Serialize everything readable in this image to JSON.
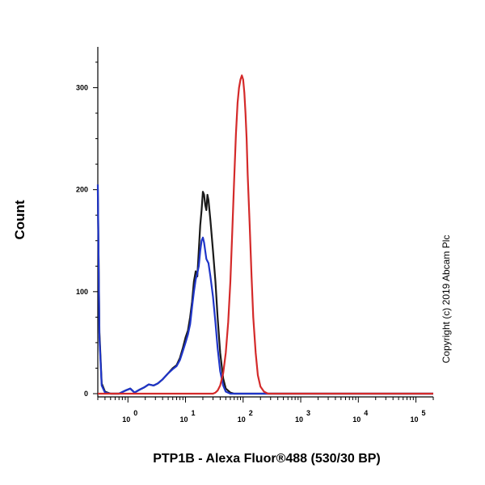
{
  "chart_data": {
    "type": "line",
    "title": "",
    "xlabel": "PTP1B - Alexa Fluor®488 (530/30 BP)",
    "ylabel": "Count",
    "x_scale": "log",
    "xlim": [
      0.3,
      200000
    ],
    "ylim": [
      0,
      340
    ],
    "x_ticks": [
      {
        "value": 1,
        "base": "10",
        "exp": "0"
      },
      {
        "value": 10,
        "base": "10",
        "exp": "1"
      },
      {
        "value": 100,
        "base": "10",
        "exp": "2"
      },
      {
        "value": 1000,
        "base": "10",
        "exp": "3"
      },
      {
        "value": 10000,
        "base": "10",
        "exp": "4"
      },
      {
        "value": 100000,
        "base": "10",
        "exp": "5"
      }
    ],
    "y_ticks": [
      {
        "value": 0,
        "label": "0"
      },
      {
        "value": 100,
        "label": "100"
      },
      {
        "value": 200,
        "label": "200"
      },
      {
        "value": 300,
        "label": "300"
      }
    ],
    "grid": false,
    "legend": "none",
    "annotation": "Copyright (c) 2019 Abcam Plc",
    "series": [
      {
        "color": "#1a1a1a",
        "points": [
          [
            0.3,
            200
          ],
          [
            0.32,
            60
          ],
          [
            0.35,
            10
          ],
          [
            0.4,
            2
          ],
          [
            0.5,
            0
          ],
          [
            0.7,
            0
          ],
          [
            0.9,
            3
          ],
          [
            1.1,
            5
          ],
          [
            1.3,
            1
          ],
          [
            1.6,
            4
          ],
          [
            1.9,
            6
          ],
          [
            2.3,
            9
          ],
          [
            2.8,
            8
          ],
          [
            3.3,
            10
          ],
          [
            4,
            14
          ],
          [
            5,
            20
          ],
          [
            6,
            25
          ],
          [
            7,
            28
          ],
          [
            8,
            35
          ],
          [
            9,
            45
          ],
          [
            10,
            55
          ],
          [
            11,
            62
          ],
          [
            12,
            75
          ],
          [
            13,
            90
          ],
          [
            14,
            110
          ],
          [
            15,
            120
          ],
          [
            16,
            115
          ],
          [
            17,
            140
          ],
          [
            18,
            165
          ],
          [
            19,
            180
          ],
          [
            20,
            198
          ],
          [
            21,
            195
          ],
          [
            22,
            185
          ],
          [
            23,
            180
          ],
          [
            24,
            195
          ],
          [
            25,
            190
          ],
          [
            27,
            170
          ],
          [
            30,
            140
          ],
          [
            33,
            110
          ],
          [
            36,
            75
          ],
          [
            40,
            40
          ],
          [
            45,
            15
          ],
          [
            50,
            5
          ],
          [
            60,
            1
          ],
          [
            70,
            0
          ],
          [
            100,
            0
          ],
          [
            1000,
            0
          ],
          [
            200000,
            0
          ]
        ]
      },
      {
        "color": "#1f35c8",
        "points": [
          [
            0.3,
            205
          ],
          [
            0.32,
            55
          ],
          [
            0.35,
            8
          ],
          [
            0.4,
            1
          ],
          [
            0.5,
            0
          ],
          [
            0.7,
            0
          ],
          [
            0.9,
            3
          ],
          [
            1.1,
            5
          ],
          [
            1.3,
            1
          ],
          [
            1.6,
            4
          ],
          [
            1.9,
            6
          ],
          [
            2.3,
            9
          ],
          [
            2.8,
            8
          ],
          [
            3.3,
            10
          ],
          [
            4,
            14
          ],
          [
            5,
            20
          ],
          [
            6,
            24
          ],
          [
            7,
            27
          ],
          [
            8,
            33
          ],
          [
            9,
            42
          ],
          [
            10,
            50
          ],
          [
            11,
            58
          ],
          [
            12,
            68
          ],
          [
            13,
            85
          ],
          [
            14,
            100
          ],
          [
            15,
            112
          ],
          [
            16,
            118
          ],
          [
            17,
            125
          ],
          [
            18,
            140
          ],
          [
            19,
            150
          ],
          [
            20,
            153
          ],
          [
            21,
            148
          ],
          [
            22,
            140
          ],
          [
            23,
            132
          ],
          [
            24,
            130
          ],
          [
            25,
            128
          ],
          [
            27,
            115
          ],
          [
            30,
            95
          ],
          [
            33,
            70
          ],
          [
            36,
            45
          ],
          [
            40,
            22
          ],
          [
            45,
            8
          ],
          [
            50,
            2
          ],
          [
            60,
            0
          ],
          [
            100,
            0
          ],
          [
            1000,
            0
          ],
          [
            200000,
            0
          ]
        ]
      },
      {
        "color": "#d42a2a",
        "points": [
          [
            0.3,
            0
          ],
          [
            20,
            0
          ],
          [
            30,
            0
          ],
          [
            33,
            1
          ],
          [
            36,
            3
          ],
          [
            40,
            8
          ],
          [
            45,
            20
          ],
          [
            50,
            40
          ],
          [
            55,
            70
          ],
          [
            60,
            110
          ],
          [
            65,
            160
          ],
          [
            70,
            210
          ],
          [
            75,
            255
          ],
          [
            80,
            285
          ],
          [
            85,
            300
          ],
          [
            90,
            308
          ],
          [
            95,
            312
          ],
          [
            100,
            308
          ],
          [
            105,
            295
          ],
          [
            110,
            275
          ],
          [
            115,
            250
          ],
          [
            120,
            215
          ],
          [
            130,
            165
          ],
          [
            140,
            115
          ],
          [
            150,
            75
          ],
          [
            165,
            40
          ],
          [
            180,
            18
          ],
          [
            200,
            7
          ],
          [
            230,
            2
          ],
          [
            270,
            0
          ],
          [
            300,
            0
          ],
          [
            200000,
            0
          ]
        ]
      }
    ]
  }
}
